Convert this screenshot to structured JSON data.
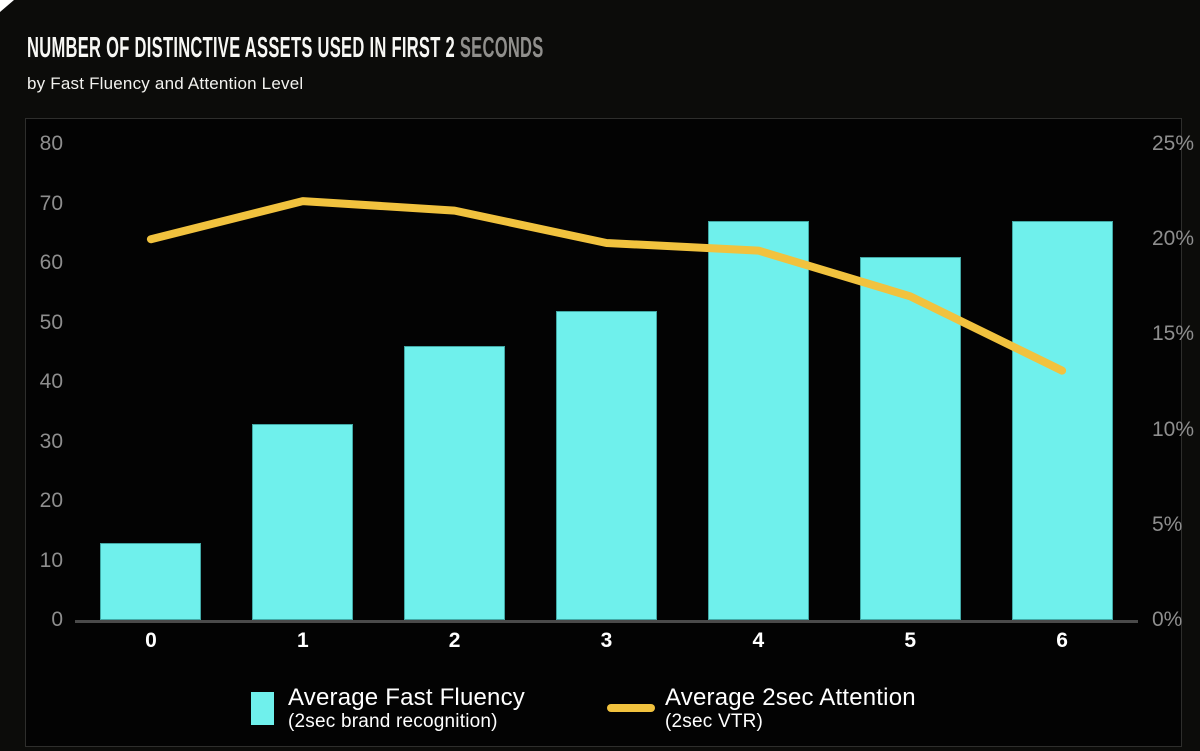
{
  "header": {
    "title_main": "NUMBER OF DISTINCTIVE ASSETS USED IN FIRST 2 ",
    "title_accent": "SECONDS",
    "subtitle": "by Fast Fluency and Attention Level"
  },
  "colors": {
    "background": "#0C0C0A",
    "panel_background": "#030303",
    "panel_border": "#2E2E2C",
    "bar_fill": "#6FF0EC",
    "line_stroke": "#F1C23E",
    "tick_label": "#8E8E8E",
    "x_label": "#FFFFFF",
    "axis_line": "#4A4A4A",
    "title_accent": "#908F8C"
  },
  "chart_data": {
    "type": "bar",
    "title": "Number of distinctive assets used in first 2 seconds",
    "subtitle": "by Fast Fluency and Attention Level",
    "categories": [
      "0",
      "1",
      "2",
      "3",
      "4",
      "5",
      "6"
    ],
    "series": [
      {
        "name": "Average Fast Fluency",
        "sublabel": "(2sec brand recognition)",
        "type": "bar",
        "axis": "left",
        "color": "#6FF0EC",
        "values": [
          13,
          33,
          46,
          52,
          67,
          61,
          67
        ]
      },
      {
        "name": "Average 2sec Attention",
        "sublabel": "(2sec VTR)",
        "type": "line",
        "axis": "right",
        "color": "#F1C23E",
        "values": [
          20,
          22,
          21.5,
          19.8,
          19.4,
          17,
          13.1
        ]
      }
    ],
    "xlabel": "",
    "ylabel_left": "",
    "ylabel_right": "",
    "left_axis": {
      "min": 0,
      "max": 80,
      "ticks": [
        80,
        70,
        60,
        50,
        40,
        30,
        20,
        10,
        0
      ]
    },
    "right_axis": {
      "min": 0,
      "max": 25,
      "ticks": [
        25,
        20,
        15,
        10,
        5,
        0
      ],
      "unit": "%"
    },
    "grid": false,
    "legend_position": "bottom"
  }
}
